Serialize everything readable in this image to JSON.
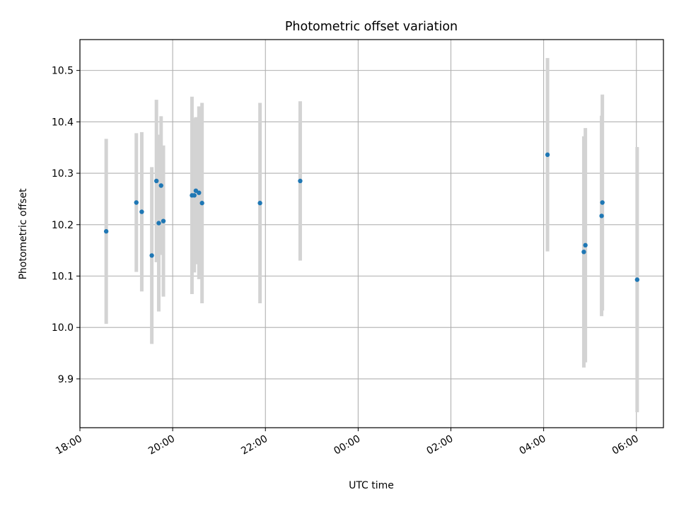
{
  "chart_data": {
    "type": "scatter",
    "title": "Photometric offset variation",
    "xlabel": "UTC time",
    "ylabel": "Photometric offset",
    "x_tick_labels": [
      "18:00",
      "20:00",
      "22:00",
      "00:00",
      "02:00",
      "04:00",
      "06:00"
    ],
    "y_tick_labels": [
      "9.9",
      "10.0",
      "10.1",
      "10.2",
      "10.3",
      "10.4",
      "10.5"
    ],
    "y_ticks": [
      9.9,
      10.0,
      10.1,
      10.2,
      10.3,
      10.4,
      10.5
    ],
    "xlim": [
      "18:00",
      "06:35"
    ],
    "ylim": [
      9.805,
      10.56
    ],
    "grid": true,
    "colors": {
      "point": "#1f77b4",
      "errorbar": "#d3d3d3",
      "grid": "#b0b0b0"
    },
    "points": [
      {
        "x": "18:34",
        "y": 10.187,
        "yerr": 0.18
      },
      {
        "x": "19:13",
        "y": 10.243,
        "yerr": 0.135
      },
      {
        "x": "19:20",
        "y": 10.225,
        "yerr": 0.155
      },
      {
        "x": "19:33",
        "y": 10.14,
        "yerr": 0.172
      },
      {
        "x": "19:39",
        "y": 10.285,
        "yerr": 0.158
      },
      {
        "x": "19:42",
        "y": 10.203,
        "yerr": 0.172
      },
      {
        "x": "19:45",
        "y": 10.276,
        "yerr": 0.135
      },
      {
        "x": "19:48",
        "y": 10.207,
        "yerr": 0.147
      },
      {
        "x": "20:25",
        "y": 10.257,
        "yerr": 0.192
      },
      {
        "x": "20:28",
        "y": 10.257,
        "yerr": 0.15
      },
      {
        "x": "20:30",
        "y": 10.266,
        "yerr": 0.143
      },
      {
        "x": "20:34",
        "y": 10.262,
        "yerr": 0.168
      },
      {
        "x": "20:38",
        "y": 10.242,
        "yerr": 0.195
      },
      {
        "x": "21:53",
        "y": 10.242,
        "yerr": 0.195
      },
      {
        "x": "22:45",
        "y": 10.285,
        "yerr": 0.155
      },
      {
        "x": "04:05",
        "y": 10.336,
        "yerr": 0.188
      },
      {
        "x": "04:52",
        "y": 10.147,
        "yerr": 0.225
      },
      {
        "x": "04:54",
        "y": 10.16,
        "yerr": 0.228
      },
      {
        "x": "05:16",
        "y": 10.243,
        "yerr": 0.21
      },
      {
        "x": "05:15",
        "y": 10.217,
        "yerr": 0.195
      },
      {
        "x": "06:01",
        "y": 10.093,
        "yerr": 0.258
      }
    ]
  }
}
